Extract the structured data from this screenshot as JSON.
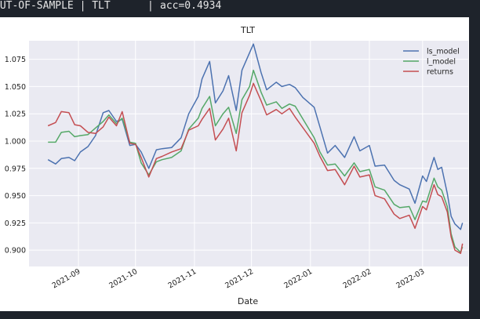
{
  "terminal": {
    "left": "OUT-OF-SAMPLE | TLT",
    "sep": "|",
    "right": "acc=0.4934"
  },
  "colors": {
    "ls_model": "#4c72b0",
    "l_model": "#55a868",
    "returns": "#c44e52",
    "plot_bg": "#eaeaf2",
    "grid": "#ffffff",
    "terminal_bg": "#1e232b"
  },
  "chart_data": {
    "type": "line",
    "title": "TLT",
    "xlabel": "Date",
    "ylabel": "",
    "grid": true,
    "legend_position": "top-right",
    "x_ticks": [
      "2021-09",
      "2021-10",
      "2021-11",
      "2021-12",
      "2022-01",
      "2022-02",
      "2022-03"
    ],
    "y_ticks": [
      "0.900",
      "0.925",
      "0.950",
      "0.975",
      "1.000",
      "1.025",
      "1.050",
      "1.075"
    ],
    "ylim": [
      0.885,
      1.092
    ],
    "xlim": [
      "2021-08-06",
      "2022-03-25"
    ],
    "series": [
      {
        "name": "ls_model",
        "points": [
          [
            "2021-08-16",
            0.983
          ],
          [
            "2021-08-20",
            0.979
          ],
          [
            "2021-08-23",
            0.984
          ],
          [
            "2021-08-27",
            0.985
          ],
          [
            "2021-08-30",
            0.982
          ],
          [
            "2021-09-02",
            0.99
          ],
          [
            "2021-09-06",
            0.995
          ],
          [
            "2021-09-10",
            1.005
          ],
          [
            "2021-09-14",
            1.026
          ],
          [
            "2021-09-17",
            1.028
          ],
          [
            "2021-09-21",
            1.018
          ],
          [
            "2021-09-24",
            1.02
          ],
          [
            "2021-09-28",
            0.996
          ],
          [
            "2021-10-01",
            0.997
          ],
          [
            "2021-10-04",
            0.99
          ],
          [
            "2021-10-08",
            0.975
          ],
          [
            "2021-10-12",
            0.992
          ],
          [
            "2021-10-15",
            0.993
          ],
          [
            "2021-10-20",
            0.994
          ],
          [
            "2021-10-25",
            1.003
          ],
          [
            "2021-10-29",
            1.025
          ],
          [
            "2021-11-03",
            1.041
          ],
          [
            "2021-11-05",
            1.057
          ],
          [
            "2021-11-09",
            1.073
          ],
          [
            "2021-11-12",
            1.035
          ],
          [
            "2021-11-16",
            1.046
          ],
          [
            "2021-11-19",
            1.06
          ],
          [
            "2021-11-23",
            1.028
          ],
          [
            "2021-11-26",
            1.065
          ],
          [
            "2021-11-30",
            1.081
          ],
          [
            "2021-12-02",
            1.089
          ],
          [
            "2021-12-06",
            1.063
          ],
          [
            "2021-12-09",
            1.047
          ],
          [
            "2021-12-14",
            1.054
          ],
          [
            "2021-12-17",
            1.05
          ],
          [
            "2021-12-21",
            1.052
          ],
          [
            "2021-12-24",
            1.049
          ],
          [
            "2021-12-28",
            1.04
          ],
          [
            "2022-01-03",
            1.031
          ],
          [
            "2022-01-06",
            1.013
          ],
          [
            "2022-01-10",
            0.989
          ],
          [
            "2022-01-14",
            0.996
          ],
          [
            "2022-01-19",
            0.985
          ],
          [
            "2022-01-24",
            1.004
          ],
          [
            "2022-01-27",
            0.991
          ],
          [
            "2022-02-01",
            0.996
          ],
          [
            "2022-02-04",
            0.977
          ],
          [
            "2022-02-09",
            0.978
          ],
          [
            "2022-02-14",
            0.964
          ],
          [
            "2022-02-17",
            0.96
          ],
          [
            "2022-02-22",
            0.956
          ],
          [
            "2022-02-25",
            0.943
          ],
          [
            "2022-03-01",
            0.968
          ],
          [
            "2022-03-03",
            0.963
          ],
          [
            "2022-03-07",
            0.985
          ],
          [
            "2022-03-09",
            0.974
          ],
          [
            "2022-03-11",
            0.976
          ],
          [
            "2022-03-14",
            0.952
          ],
          [
            "2022-03-16",
            0.931
          ],
          [
            "2022-03-18",
            0.924
          ],
          [
            "2022-03-21",
            0.919
          ],
          [
            "2022-03-22",
            0.925
          ]
        ]
      },
      {
        "name": "l_model",
        "points": [
          [
            "2021-08-16",
            0.999
          ],
          [
            "2021-08-20",
            0.999
          ],
          [
            "2021-08-23",
            1.008
          ],
          [
            "2021-08-27",
            1.009
          ],
          [
            "2021-08-30",
            1.004
          ],
          [
            "2021-09-02",
            1.005
          ],
          [
            "2021-09-06",
            1.006
          ],
          [
            "2021-09-10",
            1.012
          ],
          [
            "2021-09-14",
            1.018
          ],
          [
            "2021-09-17",
            1.024
          ],
          [
            "2021-09-21",
            1.016
          ],
          [
            "2021-09-24",
            1.021
          ],
          [
            "2021-09-28",
            0.999
          ],
          [
            "2021-10-01",
            0.998
          ],
          [
            "2021-10-04",
            0.98
          ],
          [
            "2021-10-08",
            0.969
          ],
          [
            "2021-10-12",
            0.981
          ],
          [
            "2021-10-15",
            0.983
          ],
          [
            "2021-10-20",
            0.985
          ],
          [
            "2021-10-25",
            0.991
          ],
          [
            "2021-10-29",
            1.011
          ],
          [
            "2021-11-03",
            1.021
          ],
          [
            "2021-11-05",
            1.03
          ],
          [
            "2021-11-09",
            1.041
          ],
          [
            "2021-11-12",
            1.014
          ],
          [
            "2021-11-16",
            1.025
          ],
          [
            "2021-11-19",
            1.031
          ],
          [
            "2021-11-23",
            1.007
          ],
          [
            "2021-11-26",
            1.038
          ],
          [
            "2021-11-30",
            1.05
          ],
          [
            "2021-12-02",
            1.065
          ],
          [
            "2021-12-06",
            1.045
          ],
          [
            "2021-12-09",
            1.033
          ],
          [
            "2021-12-14",
            1.036
          ],
          [
            "2021-12-17",
            1.03
          ],
          [
            "2021-12-21",
            1.034
          ],
          [
            "2021-12-24",
            1.032
          ],
          [
            "2022-01-03",
            1.003
          ],
          [
            "2022-01-06",
            0.99
          ],
          [
            "2022-01-10",
            0.978
          ],
          [
            "2022-01-14",
            0.979
          ],
          [
            "2022-01-19",
            0.968
          ],
          [
            "2022-01-24",
            0.98
          ],
          [
            "2022-01-27",
            0.972
          ],
          [
            "2022-02-01",
            0.974
          ],
          [
            "2022-02-04",
            0.958
          ],
          [
            "2022-02-09",
            0.955
          ],
          [
            "2022-02-14",
            0.942
          ],
          [
            "2022-02-17",
            0.939
          ],
          [
            "2022-02-22",
            0.94
          ],
          [
            "2022-02-25",
            0.928
          ],
          [
            "2022-03-01",
            0.945
          ],
          [
            "2022-03-03",
            0.944
          ],
          [
            "2022-03-07",
            0.966
          ],
          [
            "2022-03-09",
            0.958
          ],
          [
            "2022-03-11",
            0.955
          ],
          [
            "2022-03-14",
            0.94
          ],
          [
            "2022-03-16",
            0.915
          ],
          [
            "2022-03-18",
            0.903
          ],
          [
            "2022-03-21",
            0.898
          ],
          [
            "2022-03-22",
            0.903
          ]
        ]
      },
      {
        "name": "returns",
        "points": [
          [
            "2021-08-16",
            1.014
          ],
          [
            "2021-08-20",
            1.017
          ],
          [
            "2021-08-23",
            1.027
          ],
          [
            "2021-08-27",
            1.026
          ],
          [
            "2021-08-30",
            1.015
          ],
          [
            "2021-09-02",
            1.014
          ],
          [
            "2021-09-06",
            1.008
          ],
          [
            "2021-09-10",
            1.007
          ],
          [
            "2021-09-14",
            1.013
          ],
          [
            "2021-09-17",
            1.022
          ],
          [
            "2021-09-21",
            1.014
          ],
          [
            "2021-09-24",
            1.027
          ],
          [
            "2021-09-28",
            0.998
          ],
          [
            "2021-10-01",
            0.997
          ],
          [
            "2021-10-04",
            0.985
          ],
          [
            "2021-10-08",
            0.967
          ],
          [
            "2021-10-12",
            0.984
          ],
          [
            "2021-10-15",
            0.986
          ],
          [
            "2021-10-20",
            0.99
          ],
          [
            "2021-10-25",
            0.993
          ],
          [
            "2021-10-29",
            1.01
          ],
          [
            "2021-11-03",
            1.014
          ],
          [
            "2021-11-05",
            1.02
          ],
          [
            "2021-11-09",
            1.03
          ],
          [
            "2021-11-12",
            1.001
          ],
          [
            "2021-11-16",
            1.011
          ],
          [
            "2021-11-19",
            1.021
          ],
          [
            "2021-11-23",
            0.991
          ],
          [
            "2021-11-26",
            1.026
          ],
          [
            "2021-11-30",
            1.042
          ],
          [
            "2021-12-02",
            1.053
          ],
          [
            "2021-12-06",
            1.037
          ],
          [
            "2021-12-09",
            1.024
          ],
          [
            "2021-12-14",
            1.029
          ],
          [
            "2021-12-17",
            1.025
          ],
          [
            "2021-12-21",
            1.03
          ],
          [
            "2021-12-24",
            1.022
          ],
          [
            "2022-01-03",
            0.998
          ],
          [
            "2022-01-06",
            0.986
          ],
          [
            "2022-01-10",
            0.973
          ],
          [
            "2022-01-14",
            0.974
          ],
          [
            "2022-01-19",
            0.96
          ],
          [
            "2022-01-24",
            0.977
          ],
          [
            "2022-01-27",
            0.967
          ],
          [
            "2022-02-01",
            0.969
          ],
          [
            "2022-02-04",
            0.95
          ],
          [
            "2022-02-09",
            0.947
          ],
          [
            "2022-02-14",
            0.933
          ],
          [
            "2022-02-17",
            0.929
          ],
          [
            "2022-02-22",
            0.932
          ],
          [
            "2022-02-25",
            0.92
          ],
          [
            "2022-03-01",
            0.94
          ],
          [
            "2022-03-03",
            0.937
          ],
          [
            "2022-03-07",
            0.96
          ],
          [
            "2022-03-09",
            0.951
          ],
          [
            "2022-03-11",
            0.949
          ],
          [
            "2022-03-14",
            0.935
          ],
          [
            "2022-03-16",
            0.912
          ],
          [
            "2022-03-18",
            0.9
          ],
          [
            "2022-03-21",
            0.897
          ],
          [
            "2022-03-22",
            0.906
          ]
        ]
      }
    ]
  }
}
